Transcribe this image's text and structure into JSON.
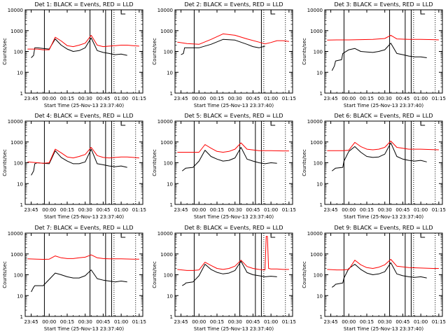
{
  "figure": {
    "common_xlabel": "Start Time (25-Nov-13 23:37:40)",
    "ylabel": "Counts/sec",
    "x_ticks": [
      "23:45",
      "00:00",
      "00:15",
      "00:30",
      "00:45",
      "01:00",
      "01:15"
    ],
    "y_ticks": [
      "1",
      "10",
      "100",
      "1000",
      "10000"
    ],
    "colors": {
      "events": "#000000",
      "lld": "#ff0000",
      "axes": "#000000"
    }
  },
  "chart_data": [
    {
      "type": "line",
      "title": "Det 1: BLACK = Events, RED = LLD",
      "xlabel": "Start Time (25-Nov-13 23:37:40)",
      "ylabel": "Counts/sec",
      "yscale": "log",
      "ylim": [
        1,
        10000
      ],
      "xlim": [
        "23:40",
        "01:18"
      ],
      "solid_markers": [
        "23:56",
        "00:34",
        "00:47",
        "00:52"
      ],
      "dotted_markers": [
        "00:54",
        "01:12"
      ],
      "series": [
        {
          "color": "#000000",
          "x_min": [
            -15,
            -13,
            -12,
            -10,
            -5,
            0,
            5,
            10,
            15,
            20,
            25,
            30,
            35,
            40,
            45,
            50,
            55,
            60,
            65
          ],
          "y": [
            50,
            65,
            150,
            150,
            140,
            130,
            400,
            200,
            130,
            100,
            110,
            150,
            450,
            110,
            90,
            80,
            70,
            75,
            65
          ]
        },
        {
          "color": "#ff0000",
          "x_min": [
            -18,
            -10,
            -5,
            0,
            5,
            10,
            15,
            20,
            25,
            30,
            35,
            40,
            45,
            50,
            55,
            60,
            65,
            70,
            75
          ],
          "y": [
            130,
            130,
            120,
            120,
            480,
            320,
            190,
            170,
            200,
            250,
            600,
            200,
            170,
            180,
            190,
            200,
            200,
            190,
            180
          ]
        }
      ]
    },
    {
      "type": "line",
      "title": "Det 2: BLACK = Events, RED = LLD",
      "xlabel": "Start Time (25-Nov-13 23:37:40)",
      "ylabel": "Counts/sec",
      "yscale": "log",
      "ylim": [
        1,
        10000
      ],
      "xlim": [
        "23:40",
        "01:18"
      ],
      "solid_markers": [
        "23:56",
        "00:52"
      ],
      "dotted_markers": [
        "00:54",
        "01:12"
      ],
      "series": [
        {
          "color": "#000000",
          "x_min": [
            -15,
            -13,
            -12,
            -5,
            0,
            10,
            20,
            30,
            40,
            45,
            50,
            55
          ],
          "y": [
            70,
            80,
            150,
            150,
            150,
            220,
            380,
            350,
            220,
            170,
            150,
            180
          ]
        },
        {
          "color": "#ff0000",
          "x_min": [
            -18,
            -10,
            0,
            10,
            20,
            30,
            40,
            50,
            55,
            60,
            65,
            70,
            75
          ],
          "y": [
            280,
            240,
            220,
            380,
            700,
            600,
            400,
            280,
            230,
            270,
            330,
            330,
            300
          ]
        }
      ]
    },
    {
      "type": "line",
      "title": "Det 3: BLACK = Events, RED = LLD",
      "xlabel": "Start Time (25-Nov-13 23:37:40)",
      "ylabel": "Counts/sec",
      "yscale": "log",
      "ylim": [
        1,
        10000
      ],
      "xlim": [
        "23:40",
        "01:18"
      ],
      "solid_markers": [
        "23:56",
        "00:34",
        "00:47",
        "00:52"
      ],
      "dotted_markers": [
        "00:54",
        "01:12"
      ],
      "series": [
        {
          "color": "#000000",
          "x_min": [
            -14,
            -12,
            -11,
            -6,
            -5,
            0,
            5,
            10,
            15,
            20,
            25,
            30,
            35,
            40,
            45,
            50,
            55,
            60,
            65
          ],
          "y": [
            12,
            20,
            35,
            40,
            80,
            120,
            140,
            100,
            95,
            90,
            100,
            120,
            250,
            80,
            70,
            60,
            55,
            55,
            50
          ]
        },
        {
          "color": "#ff0000",
          "x_min": [
            -18,
            -10,
            0,
            10,
            20,
            30,
            35,
            40,
            50,
            60,
            70,
            75
          ],
          "y": [
            350,
            360,
            360,
            370,
            380,
            420,
            600,
            400,
            380,
            380,
            370,
            360
          ]
        }
      ]
    },
    {
      "type": "line",
      "title": "Det 4: BLACK = Events, RED = LLD",
      "xlabel": "Start Time (25-Nov-13 23:37:40)",
      "ylabel": "Counts/sec",
      "yscale": "log",
      "ylim": [
        1,
        10000
      ],
      "xlim": [
        "23:40",
        "01:18"
      ],
      "solid_markers": [
        "23:56",
        "00:34",
        "00:47",
        "00:52"
      ],
      "dotted_markers": [
        "00:54",
        "01:12"
      ],
      "series": [
        {
          "color": "#000000",
          "x_min": [
            -15,
            -13,
            -12,
            -10,
            -5,
            0,
            5,
            10,
            15,
            20,
            25,
            30,
            35,
            40,
            45,
            50,
            55,
            60,
            65
          ],
          "y": [
            25,
            40,
            90,
            100,
            95,
            90,
            380,
            180,
            120,
            90,
            90,
            110,
            450,
            90,
            80,
            70,
            65,
            70,
            60
          ]
        },
        {
          "color": "#ff0000",
          "x_min": [
            -18,
            -10,
            -5,
            0,
            5,
            10,
            15,
            20,
            25,
            30,
            35,
            40,
            45,
            50,
            55,
            60,
            65,
            70,
            75
          ],
          "y": [
            110,
            100,
            95,
            100,
            450,
            300,
            190,
            170,
            200,
            250,
            550,
            220,
            180,
            170,
            180,
            190,
            190,
            180,
            170
          ]
        }
      ]
    },
    {
      "type": "line",
      "title": "Det 5: BLACK = Events, RED = LLD",
      "xlabel": "Start Time (25-Nov-13 23:37:40)",
      "ylabel": "Counts/sec",
      "yscale": "log",
      "ylim": [
        1,
        10000
      ],
      "xlim": [
        "23:40",
        "01:18"
      ],
      "solid_markers": [
        "23:56",
        "00:34",
        "00:47",
        "00:52"
      ],
      "dotted_markers": [
        "00:54",
        "01:12"
      ],
      "series": [
        {
          "color": "#000000",
          "x_min": [
            -14,
            -12,
            -11,
            -5,
            0,
            5,
            10,
            15,
            20,
            25,
            30,
            35,
            40,
            45,
            50,
            55,
            60,
            65
          ],
          "y": [
            40,
            50,
            55,
            60,
            120,
            400,
            200,
            150,
            120,
            130,
            170,
            550,
            150,
            120,
            100,
            90,
            100,
            95
          ]
        },
        {
          "color": "#ff0000",
          "x_min": [
            -18,
            -10,
            -5,
            0,
            5,
            10,
            15,
            20,
            25,
            30,
            35,
            40,
            50,
            60,
            70,
            75
          ],
          "y": [
            320,
            320,
            320,
            320,
            750,
            500,
            350,
            320,
            350,
            450,
            900,
            450,
            380,
            380,
            370,
            370
          ]
        }
      ]
    },
    {
      "type": "line",
      "title": "Det 6: BLACK = Events, RED = LLD",
      "xlabel": "Start Time (25-Nov-13 23:37:40)",
      "ylabel": "Counts/sec",
      "yscale": "log",
      "ylim": [
        1,
        10000
      ],
      "xlim": [
        "23:40",
        "01:18"
      ],
      "solid_markers": [
        "23:56",
        "00:34",
        "00:47",
        "00:52"
      ],
      "dotted_markers": [
        "00:54",
        "01:12"
      ],
      "series": [
        {
          "color": "#000000",
          "x_min": [
            -14,
            -12,
            -11,
            -5,
            -4,
            0,
            5,
            10,
            15,
            20,
            25,
            30,
            35,
            40,
            45,
            50,
            55,
            60,
            65
          ],
          "y": [
            40,
            50,
            55,
            60,
            120,
            350,
            600,
            320,
            200,
            180,
            190,
            260,
            900,
            200,
            150,
            130,
            120,
            130,
            110
          ]
        },
        {
          "color": "#ff0000",
          "x_min": [
            -18,
            -10,
            -5,
            0,
            5,
            10,
            15,
            20,
            25,
            30,
            35,
            40,
            50,
            60,
            70,
            75
          ],
          "y": [
            380,
            380,
            380,
            400,
            950,
            600,
            450,
            420,
            450,
            550,
            1100,
            550,
            450,
            450,
            430,
            420
          ]
        }
      ]
    },
    {
      "type": "line",
      "title": "Det 7: BLACK = Events, RED = LLD",
      "xlabel": "Start Time (25-Nov-13 23:37:40)",
      "ylabel": "Counts/sec",
      "yscale": "log",
      "ylim": [
        1,
        10000
      ],
      "xlim": [
        "23:40",
        "01:18"
      ],
      "solid_markers": [
        "23:56",
        "00:34",
        "00:47",
        "00:52"
      ],
      "dotted_markers": [
        "00:54",
        "01:12"
      ],
      "series": [
        {
          "color": "#000000",
          "x_min": [
            -15,
            -13,
            -12,
            -10,
            -5,
            0,
            5,
            10,
            15,
            20,
            25,
            30,
            35,
            40,
            45,
            50,
            55,
            60,
            65
          ],
          "y": [
            15,
            25,
            30,
            30,
            30,
            60,
            120,
            100,
            80,
            70,
            70,
            90,
            170,
            65,
            55,
            50,
            45,
            50,
            45
          ]
        },
        {
          "color": "#ff0000",
          "x_min": [
            -18,
            -10,
            -5,
            0,
            5,
            10,
            15,
            20,
            25,
            30,
            35,
            40,
            45,
            50,
            55,
            60,
            65,
            70,
            75
          ],
          "y": [
            580,
            560,
            550,
            560,
            800,
            650,
            600,
            600,
            650,
            700,
            900,
            650,
            600,
            580,
            580,
            580,
            570,
            560,
            560
          ]
        }
      ]
    },
    {
      "type": "line",
      "title": "Det 8: BLACK = Events, RED = LLD",
      "xlabel": "Start Time (25-Nov-13 23:37:40)",
      "ylabel": "Counts/sec",
      "yscale": "log",
      "ylim": [
        1,
        10000
      ],
      "xlim": [
        "23:40",
        "01:18"
      ],
      "solid_markers": [
        "23:56",
        "00:34",
        "00:47",
        "00:52"
      ],
      "dotted_markers": [
        "00:54",
        "01:12"
      ],
      "series": [
        {
          "color": "#000000",
          "x_min": [
            -14,
            -12,
            -11,
            -5,
            0,
            5,
            10,
            15,
            20,
            25,
            30,
            35,
            40,
            45,
            50,
            55,
            60,
            65
          ],
          "y": [
            30,
            35,
            40,
            45,
            90,
            320,
            180,
            130,
            110,
            120,
            160,
            450,
            130,
            100,
            90,
            80,
            85,
            80
          ]
        },
        {
          "color": "#ff0000",
          "x_min": [
            -18,
            -10,
            -5,
            0,
            5,
            10,
            15,
            20,
            25,
            30,
            35,
            40,
            45,
            50,
            55,
            56,
            57,
            58,
            60,
            65,
            70,
            75
          ],
          "y": [
            180,
            160,
            160,
            170,
            400,
            280,
            200,
            180,
            200,
            260,
            500,
            250,
            200,
            180,
            170,
            7000,
            7000,
            200,
            190,
            190,
            180,
            180
          ]
        }
      ]
    },
    {
      "type": "line",
      "title": "Det 9: BLACK = Events, RED = LLD",
      "xlabel": "Start Time (25-Nov-13 23:37:40)",
      "ylabel": "Counts/sec",
      "yscale": "log",
      "ylim": [
        1,
        10000
      ],
      "xlim": [
        "23:40",
        "01:18"
      ],
      "solid_markers": [
        "23:56",
        "00:34",
        "00:47",
        "00:52"
      ],
      "dotted_markers": [
        "00:54",
        "01:12"
      ],
      "series": [
        {
          "color": "#000000",
          "x_min": [
            -14,
            -12,
            -11,
            -5,
            -4,
            0,
            5,
            10,
            15,
            20,
            25,
            30,
            35,
            40,
            45,
            50,
            55,
            60,
            65
          ],
          "y": [
            25,
            30,
            35,
            40,
            70,
            200,
            320,
            180,
            120,
            100,
            110,
            140,
            380,
            110,
            90,
            80,
            75,
            80,
            70
          ]
        },
        {
          "color": "#ff0000",
          "x_min": [
            -18,
            -10,
            -5,
            0,
            5,
            10,
            15,
            20,
            25,
            30,
            35,
            40,
            50,
            60,
            70,
            75
          ],
          "y": [
            180,
            170,
            170,
            180,
            500,
            300,
            220,
            200,
            230,
            300,
            550,
            260,
            220,
            210,
            200,
            200
          ]
        }
      ]
    }
  ]
}
